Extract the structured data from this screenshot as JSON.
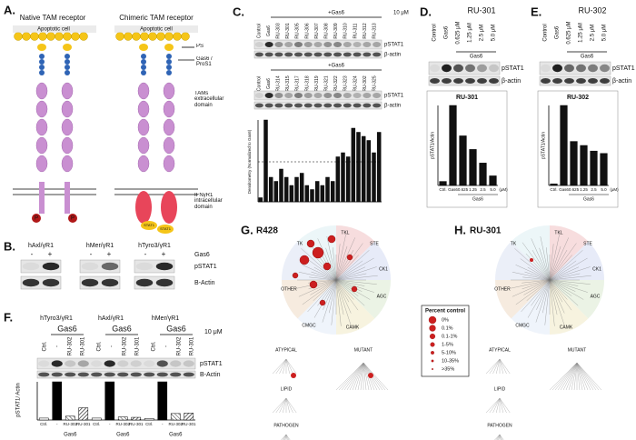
{
  "panel_a": {
    "letter": "A.",
    "native_title": "Native TAM receptor",
    "chimeric_title": "Chimeric TAM receptor",
    "apoptotic_cell": "Apoptotic cell",
    "ps": "PS",
    "gas6": "Gas6 / ProS1",
    "extracellular": "TAMs extracellular domain",
    "intracellular": "IFNγR1 intracellular domain",
    "stat1": "STAT1",
    "phospho": "P"
  },
  "panel_b": {
    "letter": "B.",
    "constructs": [
      "hAxl/γR1",
      "hMer/γR1",
      "hTyro3/γR1"
    ],
    "treatments": [
      "-",
      "+"
    ],
    "gas6": "Gas6",
    "bands": [
      "pSTAT1",
      "B-Actin"
    ]
  },
  "panel_c": {
    "letter": "C.",
    "treatment": "+Gas6",
    "dose": "10 μM",
    "rows": [
      [
        "Control",
        "Gas6",
        "RU-303",
        "RU-301",
        "RU-305",
        "RU-306",
        "RU-307",
        "RU-308",
        "RU-309",
        "RU-310",
        "RU-311",
        "RU-312",
        "RU-313"
      ],
      [
        "Control",
        "Gas6",
        "RU-314",
        "RU-315",
        "RU-317",
        "RU-318",
        "RU-319",
        "RU-321",
        "RU-322",
        "RU-323",
        "RU-324",
        "RU-302",
        "RU-325"
      ]
    ],
    "bands": [
      "pSTAT1",
      "β-actin"
    ],
    "chart_data": {
      "type": "bar",
      "y_label": "Densitometry (Normalized to Gas6)",
      "values": [
        0.05,
        1,
        0.3,
        0.25,
        0.4,
        0.3,
        0.2,
        0.3,
        0.35,
        0.2,
        0.15,
        0.25,
        0.2,
        0.3,
        0.25,
        0.55,
        0.6,
        0.55,
        0.9,
        0.85,
        0.8,
        0.75,
        0.6,
        0.85
      ]
    }
  },
  "panel_d": {
    "letter": "D.",
    "title": "RU-301",
    "lanes": [
      "Control",
      "Gas6",
      "0.625 μM",
      "1.25 μM",
      "2.5 μM",
      "5.0 μM"
    ],
    "gas6": "Gas6",
    "bands": [
      "pSTAT1",
      "β-actin"
    ],
    "chart_data": {
      "type": "bar",
      "title": "RU-301",
      "y_label": "pSTAT1/Actin",
      "categories": [
        "Ctrl.",
        "Gas6",
        "0.625",
        "1.25",
        "2.5",
        "5.0"
      ],
      "unit": "(μM)",
      "group_label": "Gas6",
      "values": [
        0.05,
        1,
        0.62,
        0.45,
        0.28,
        0.12
      ]
    }
  },
  "panel_e": {
    "letter": "E.",
    "title": "RU-302",
    "lanes": [
      "Control",
      "Gas6",
      "0.625 μM",
      "1.25 μM",
      "2.5 μM",
      "5.0 μM"
    ],
    "gas6": "Gas6",
    "bands": [
      "pSTAT1",
      "β-actin"
    ],
    "chart_data": {
      "type": "bar",
      "title": "RU-302",
      "y_label": "pSTAT1/Actin",
      "categories": [
        "Ctrl.",
        "Gas6",
        "0.625",
        "1.25",
        "2.5",
        "5.0"
      ],
      "unit": "(μM)",
      "group_label": "Gas6",
      "values": [
        0.02,
        1,
        0.55,
        0.5,
        0.43,
        0.4
      ]
    }
  },
  "panel_f": {
    "letter": "F.",
    "groups": [
      "hTyro3/γR1",
      "hAxl/γR1",
      "hMer/γR1"
    ],
    "gas6": "Gas6",
    "dose": "10 μM",
    "lanes": [
      "Ctrl.",
      "-",
      "RU-302",
      "RU-301"
    ],
    "bands": [
      "pSTAT1",
      "B-Actin"
    ],
    "chart_data": {
      "type": "bar",
      "y_label": "pSTAT1/ Actin",
      "categories": [
        "Ctrl.",
        "-",
        "RU-302",
        "RU-301",
        "Ctrl.",
        "-",
        "RU-302",
        "RU-301",
        "Ctrl.",
        "-",
        "RU-302",
        "RU-301"
      ],
      "values": [
        0.05,
        1,
        0.1,
        0.32,
        0.05,
        1,
        0.08,
        0.07,
        0.04,
        1,
        0.17,
        0.18
      ]
    }
  },
  "panel_g": {
    "letter": "G.",
    "compound": "R428"
  },
  "panel_h": {
    "letter": "H.",
    "compound": "RU-301"
  },
  "kinome": {
    "groups": [
      "TK",
      "TKL",
      "STE",
      "CK1",
      "AGC",
      "CAMK",
      "CMGC",
      "OTHER"
    ],
    "subgroups": [
      "ATYPICAL",
      "MUTANT",
      "LIPID",
      "PATHOGEN"
    ]
  },
  "legend": {
    "title": "Percent control",
    "levels": [
      "0%",
      "0.1%",
      "0.1-1%",
      "1-5%",
      "5-10%",
      "10-35%",
      ">35%"
    ]
  }
}
